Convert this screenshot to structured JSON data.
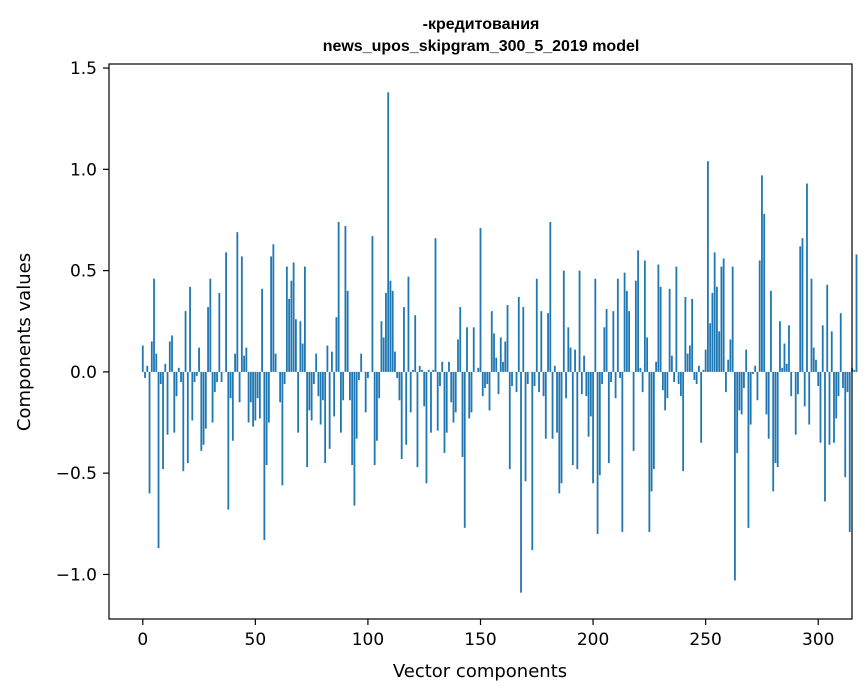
{
  "chart_data": {
    "type": "bar",
    "title": [
      "-кредитования",
      "news_upos_skipgram_300_5_2019 model"
    ],
    "xlabel": "Vector components",
    "ylabel": "Components values",
    "xlim": [
      -15,
      315
    ],
    "ylim": [
      -1.22,
      1.52
    ],
    "xticks": [
      0,
      50,
      100,
      150,
      200,
      250,
      300
    ],
    "xtick_labels": [
      "0",
      "50",
      "100",
      "150",
      "200",
      "250",
      "300"
    ],
    "yticks": [
      -1.0,
      -0.5,
      0.0,
      0.5,
      1.0,
      1.5
    ],
    "ytick_labels": [
      "−1.0",
      "−0.5",
      "0.0",
      "0.5",
      "1.0",
      "1.5"
    ],
    "bar_color": "#1f77b4",
    "values": [
      0.13,
      -0.03,
      0.03,
      -0.6,
      0.15,
      0.46,
      0.09,
      -0.87,
      -0.06,
      -0.48,
      0.04,
      -0.31,
      0.15,
      0.18,
      -0.3,
      -0.12,
      0.02,
      -0.05,
      -0.49,
      0.3,
      -0.45,
      0.42,
      -0.24,
      -0.05,
      -0.02,
      0.12,
      -0.39,
      -0.36,
      -0.28,
      0.32,
      0.46,
      -0.25,
      -0.1,
      -0.05,
      0.39,
      -0.05,
      0.0,
      0.59,
      -0.68,
      -0.13,
      -0.34,
      0.09,
      0.69,
      -0.15,
      0.57,
      0.08,
      0.12,
      -0.25,
      -0.15,
      -0.27,
      -0.24,
      -0.13,
      -0.23,
      0.41,
      -0.83,
      -0.46,
      -0.25,
      0.57,
      0.63,
      0.09,
      0.0,
      -0.15,
      -0.56,
      -0.06,
      0.52,
      0.36,
      0.45,
      0.54,
      0.26,
      -0.3,
      0.25,
      0.14,
      0.52,
      -0.47,
      -0.19,
      -0.24,
      -0.06,
      0.09,
      -0.12,
      -0.26,
      -0.14,
      -0.45,
      0.13,
      -0.38,
      0.1,
      -0.22,
      0.27,
      0.74,
      -0.3,
      -0.14,
      0.72,
      0.4,
      -0.14,
      -0.46,
      -0.66,
      -0.33,
      -0.04,
      0.09,
      0.0,
      -0.2,
      -0.03,
      0.0,
      0.67,
      -0.46,
      -0.34,
      -0.13,
      0.25,
      0.17,
      0.39,
      1.38,
      0.45,
      0.4,
      0.1,
      -0.03,
      -0.14,
      -0.43,
      0.32,
      -0.36,
      0.47,
      -0.2,
      0.01,
      0.28,
      -0.47,
      0.03,
      0.01,
      -0.17,
      -0.55,
      0.01,
      -0.3,
      0.01,
      0.66,
      -0.29,
      -0.07,
      0.05,
      -0.4,
      -0.3,
      0.05,
      -0.15,
      -0.25,
      -0.2,
      0.16,
      0.32,
      -0.42,
      -0.77,
      0.22,
      -0.23,
      -0.2,
      0.22,
      0.0,
      0.02,
      0.71,
      -0.12,
      -0.08,
      -0.06,
      -0.19,
      0.3,
      0.19,
      0.07,
      -0.11,
      0.17,
      0.05,
      0.15,
      0.33,
      -0.48,
      -0.07,
      0.0,
      -0.1,
      0.37,
      -1.09,
      0.32,
      -0.54,
      -0.06,
      0.0,
      -0.88,
      -0.07,
      0.46,
      -0.1,
      0.3,
      -0.12,
      -0.33,
      0.29,
      0.74,
      -0.33,
      0.03,
      -0.3,
      -0.6,
      -0.55,
      0.5,
      -0.13,
      0.22,
      0.12,
      -0.46,
      0.11,
      -0.48,
      0.5,
      -0.11,
      0.08,
      -0.12,
      -0.32,
      -0.22,
      -0.55,
      0.46,
      -0.8,
      -0.51,
      -0.06,
      0.22,
      0.31,
      -0.45,
      -0.05,
      0.3,
      -0.13,
      0.46,
      -0.03,
      -0.79,
      0.49,
      0.4,
      0.3,
      0.0,
      -0.39,
      0.45,
      0.6,
      0.02,
      -0.1,
      0.55,
      0.17,
      -0.79,
      -0.59,
      -0.48,
      0.05,
      0.53,
      0.42,
      -0.09,
      -0.19,
      -0.13,
      0.41,
      0.08,
      -0.05,
      0.52,
      -0.06,
      -0.12,
      -0.49,
      0.37,
      0.09,
      0.13,
      0.36,
      -0.04,
      -0.06,
      0.03,
      -0.35,
      0.01,
      0.11,
      1.04,
      0.24,
      0.39,
      0.59,
      0.42,
      0.2,
      0.52,
      0.56,
      -0.1,
      0.06,
      0.16,
      0.52,
      -1.03,
      -0.4,
      -0.19,
      -0.21,
      -0.08,
      0.11,
      -0.77,
      -0.26,
      -0.01,
      0.03,
      -0.14,
      0.55,
      0.97,
      0.78,
      -0.21,
      -0.33,
      0.4,
      -0.59,
      -0.45,
      -0.47,
      0.25,
      0.02,
      0.14,
      0.04,
      0.23,
      -0.12,
      0.0,
      -0.31,
      -0.11,
      0.62,
      0.66,
      -0.17,
      0.93,
      -0.26,
      0.46,
      0.12,
      0.06,
      -0.07,
      -0.35,
      0.23,
      -0.64,
      0.43,
      -0.36,
      0.2,
      -0.35,
      -0.23,
      -0.12,
      0.29,
      -0.08,
      -0.52,
      -0.1,
      -0.79,
      0.02,
      0.01,
      0.58
    ]
  }
}
